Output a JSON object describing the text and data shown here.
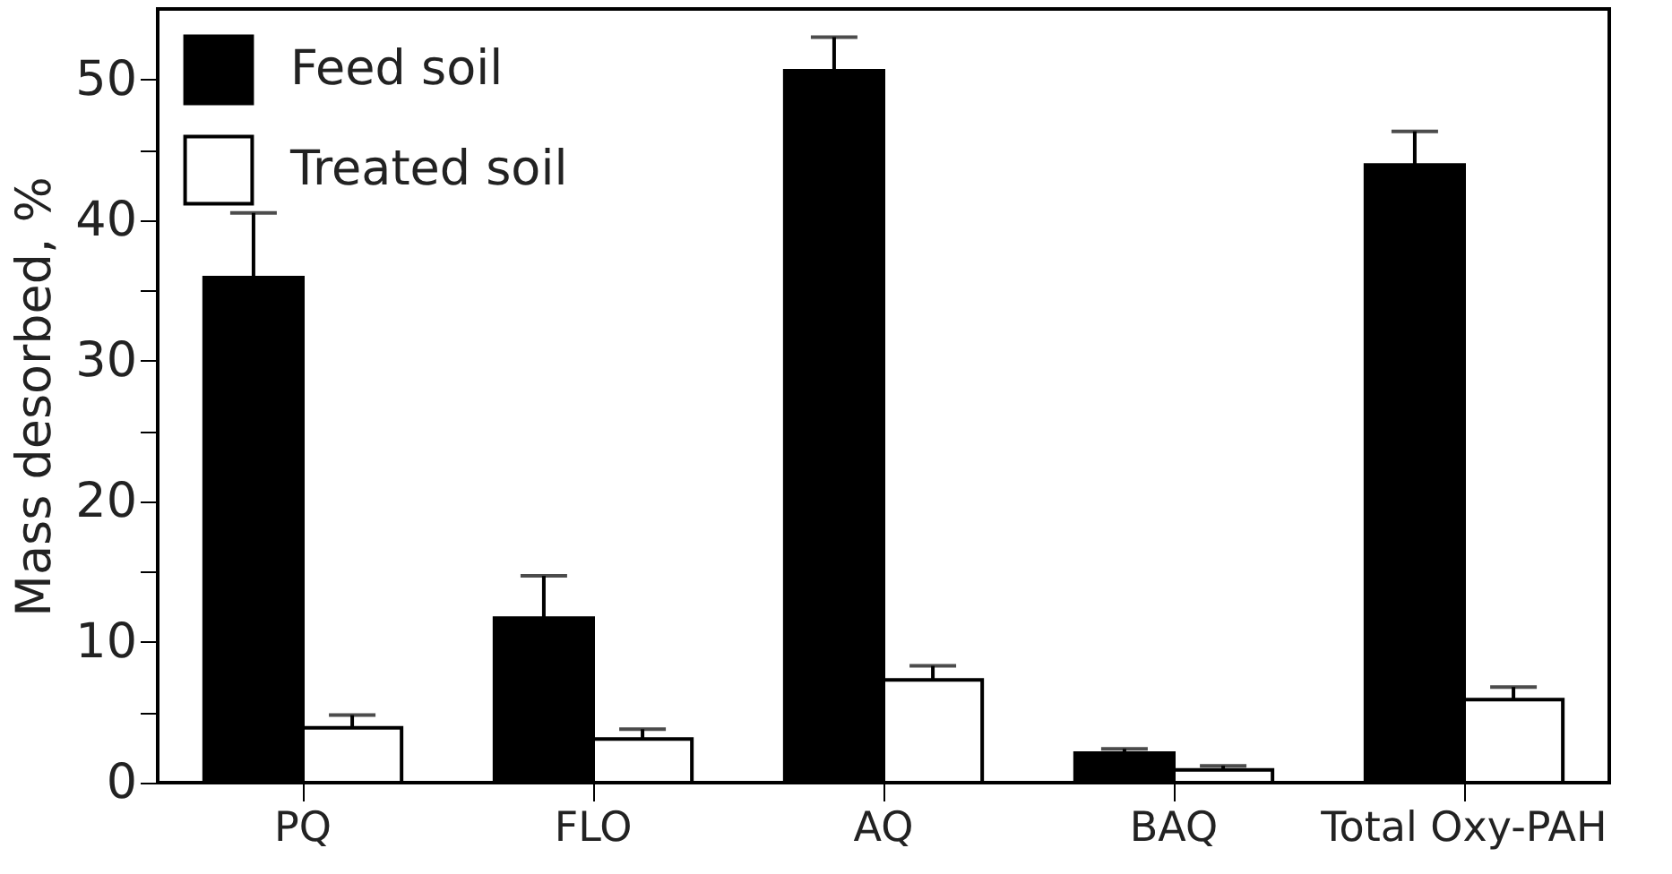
{
  "chart_data": {
    "type": "bar",
    "ylabel": "Mass desorbed, %",
    "categories": [
      "PQ",
      "FLO",
      "AQ",
      "BAQ",
      "Total Oxy-PAH"
    ],
    "series": [
      {
        "name": "Feed soil",
        "color": "#000000",
        "values": [
          35.9,
          11.7,
          50.6,
          2.1,
          43.9
        ],
        "errors": [
          [
            35.9,
            40.5
          ],
          [
            11.7,
            14.7
          ],
          [
            50.6,
            53.0
          ],
          [
            2.1,
            2.4
          ],
          [
            43.9,
            46.3
          ]
        ]
      },
      {
        "name": "Treated soil",
        "color": "#ffffff",
        "values": [
          3.9,
          3.1,
          7.3,
          0.9,
          5.9
        ],
        "errors": [
          [
            3.9,
            4.8
          ],
          [
            3.1,
            3.8
          ],
          [
            7.3,
            8.3
          ],
          [
            0.9,
            1.2
          ],
          [
            5.9,
            6.8
          ]
        ]
      }
    ],
    "ylim": [
      0,
      55
    ],
    "yticks": [
      0,
      {
        "value": 5,
        "label": null
      },
      10,
      {
        "value": 15,
        "label": null
      },
      20,
      {
        "value": 25,
        "label": null
      },
      30,
      {
        "value": 35,
        "label": null
      },
      40,
      {
        "value": 45,
        "label": null
      },
      50
    ],
    "legend": "top left",
    "grid": false
  }
}
